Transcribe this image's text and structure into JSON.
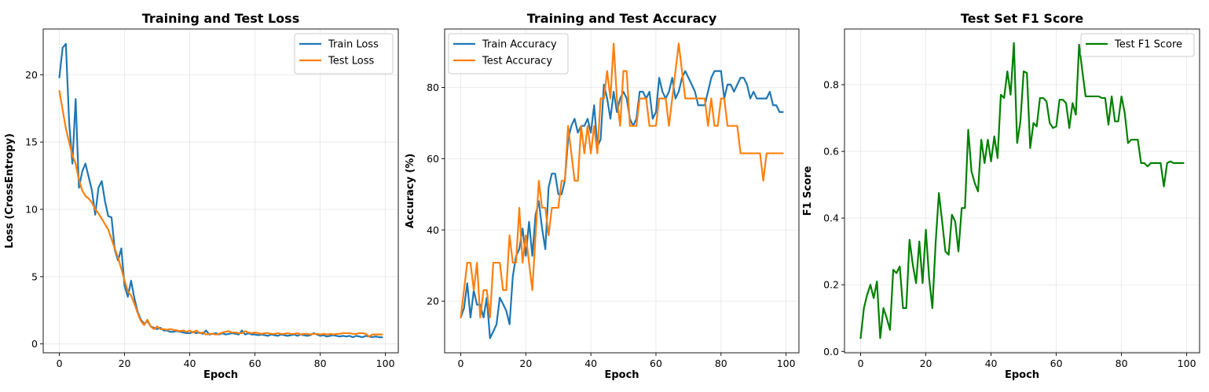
{
  "figure": {
    "chart_data": [
      {
        "type": "line",
        "title": "Training and Test Loss",
        "xlabel": "Epoch",
        "ylabel": "Loss (CrossEntropy)",
        "xlim": [
          -4.95,
          103.95
        ],
        "ylim": [
          -0.66,
          23.4
        ],
        "xticks": [
          0,
          20,
          40,
          60,
          80,
          100
        ],
        "yticks": [
          0,
          5,
          10,
          15,
          20
        ],
        "grid": true,
        "legend_position": "upper right",
        "series": [
          {
            "name": "Train Loss",
            "color": "#1f77b4",
            "values": [
              19.8,
              22.0,
              22.3,
              16.5,
              13.4,
              18.2,
              11.6,
              12.8,
              13.4,
              12.4,
              11.4,
              9.6,
              11.6,
              12.1,
              10.6,
              9.5,
              9.4,
              7.0,
              6.2,
              7.1,
              4.3,
              3.5,
              4.7,
              3.4,
              2.4,
              1.8,
              1.5,
              1.7,
              1.3,
              1.2,
              1.1,
              1.2,
              1.0,
              1.0,
              0.9,
              0.9,
              0.95,
              0.9,
              0.85,
              0.8,
              0.8,
              0.9,
              0.8,
              0.85,
              0.75,
              1.0,
              0.7,
              0.75,
              0.8,
              0.7,
              0.8,
              0.7,
              0.75,
              0.8,
              0.75,
              0.7,
              1.0,
              0.7,
              0.8,
              0.7,
              0.7,
              0.65,
              0.7,
              0.65,
              0.6,
              0.7,
              0.65,
              0.6,
              0.7,
              0.65,
              0.6,
              0.65,
              0.7,
              0.6,
              0.7,
              0.65,
              0.6,
              0.65,
              0.8,
              0.7,
              0.6,
              0.65,
              0.55,
              0.6,
              0.65,
              0.6,
              0.55,
              0.6,
              0.55,
              0.6,
              0.5,
              0.6,
              0.55,
              0.5,
              0.6,
              0.55,
              0.5,
              0.55,
              0.5,
              0.5
            ]
          },
          {
            "name": "Test Loss",
            "color": "#ff7f0e",
            "values": [
              18.8,
              17.4,
              16.0,
              15.0,
              14.0,
              13.4,
              12.2,
              11.4,
              11.0,
              10.8,
              10.5,
              10.0,
              9.7,
              9.3,
              8.9,
              8.5,
              7.8,
              7.1,
              6.4,
              5.6,
              4.7,
              3.9,
              3.6,
              3.0,
              2.3,
              1.7,
              1.4,
              1.8,
              1.3,
              1.1,
              1.3,
              1.1,
              1.1,
              1.05,
              1.1,
              1.05,
              1.0,
              0.95,
              1.0,
              0.9,
              1.0,
              0.85,
              1.0,
              0.8,
              0.85,
              0.7,
              0.75,
              0.75,
              0.7,
              0.75,
              0.85,
              0.9,
              0.95,
              0.85,
              0.85,
              0.8,
              0.8,
              0.95,
              0.85,
              0.8,
              0.85,
              0.8,
              0.75,
              0.8,
              0.8,
              0.75,
              0.75,
              0.8,
              0.75,
              0.75,
              0.8,
              0.75,
              0.75,
              0.8,
              0.7,
              0.75,
              0.75,
              0.7,
              0.75,
              0.75,
              0.7,
              0.75,
              0.7,
              0.75,
              0.7,
              0.75,
              0.75,
              0.8,
              0.8,
              0.8,
              0.75,
              0.75,
              0.8,
              0.8,
              0.75,
              0.55,
              0.7,
              0.7,
              0.7,
              0.7
            ]
          }
        ]
      },
      {
        "type": "line",
        "title": "Training and Test Accuracy",
        "xlabel": "Epoch",
        "ylabel": "Accuracy (%)",
        "xlim": [
          -4.95,
          103.95
        ],
        "ylim": [
          5.5,
          96.4
        ],
        "xticks": [
          0,
          20,
          40,
          60,
          80,
          100
        ],
        "yticks": [
          20,
          40,
          60,
          80
        ],
        "grid": true,
        "legend_position": "upper left",
        "series": [
          {
            "name": "Train Accuracy",
            "color": "#1f77b4",
            "values": [
              15.4,
              18.0,
              25.0,
              15.4,
              23.0,
              19.0,
              19.0,
              15.4,
              21.0,
              9.6,
              11.5,
              13.5,
              21.0,
              19.2,
              17.3,
              13.5,
              26.9,
              32.7,
              34.6,
              40.4,
              32.7,
              42.3,
              32.7,
              44.2,
              48.1,
              40.4,
              34.6,
              51.9,
              55.8,
              55.8,
              50.0,
              50.0,
              53.8,
              65.4,
              69.2,
              71.2,
              67.3,
              69.2,
              69.2,
              71.2,
              67.3,
              75.0,
              63.5,
              65.4,
              80.8,
              76.9,
              71.2,
              78.8,
              73.1,
              76.9,
              78.8,
              76.9,
              71.2,
              69.2,
              71.2,
              78.8,
              78.8,
              76.9,
              78.8,
              71.2,
              73.1,
              82.7,
              78.8,
              76.9,
              78.8,
              82.7,
              76.9,
              78.8,
              82.7,
              84.6,
              82.7,
              80.8,
              78.8,
              75.0,
              75.0,
              75.0,
              78.8,
              82.7,
              84.6,
              84.6,
              84.6,
              76.9,
              80.8,
              80.8,
              78.8,
              80.8,
              82.7,
              82.7,
              80.8,
              76.9,
              78.8,
              76.9,
              76.9,
              76.9,
              76.9,
              78.8,
              75.0,
              75.0,
              73.1,
              73.1
            ]
          },
          {
            "name": "Test Accuracy",
            "color": "#ff7f0e",
            "values": [
              15.4,
              23.1,
              30.8,
              30.8,
              23.1,
              30.8,
              15.4,
              23.1,
              23.1,
              15.4,
              30.8,
              30.8,
              30.8,
              23.1,
              23.1,
              38.5,
              30.8,
              30.8,
              46.2,
              30.8,
              38.5,
              30.8,
              23.1,
              38.5,
              53.8,
              46.2,
              46.2,
              38.5,
              46.2,
              46.2,
              46.2,
              53.8,
              53.8,
              69.2,
              61.5,
              53.8,
              53.8,
              69.2,
              61.5,
              69.2,
              61.5,
              69.2,
              61.5,
              76.9,
              76.9,
              84.6,
              76.9,
              92.3,
              76.9,
              69.2,
              84.6,
              84.6,
              69.2,
              69.2,
              69.2,
              76.9,
              76.9,
              76.9,
              69.2,
              69.2,
              69.2,
              76.9,
              76.9,
              76.9,
              69.2,
              76.9,
              84.6,
              92.3,
              84.6,
              76.9,
              76.9,
              76.9,
              76.9,
              76.9,
              76.9,
              76.9,
              69.2,
              76.9,
              69.2,
              69.2,
              76.9,
              76.9,
              69.2,
              69.2,
              69.2,
              69.2,
              61.5,
              61.5,
              61.5,
              61.5,
              61.5,
              61.5,
              61.5,
              53.8,
              61.5,
              61.5,
              61.5,
              61.5,
              61.5,
              61.5
            ]
          }
        ]
      },
      {
        "type": "line",
        "title": "Test Set F1 Score",
        "xlabel": "Epoch",
        "ylabel": "F1 Score",
        "xlim": [
          -4.95,
          103.95
        ],
        "ylim": [
          -0.004,
          0.967
        ],
        "xticks": [
          0,
          20,
          40,
          60,
          80,
          100
        ],
        "yticks": [
          0.0,
          0.2,
          0.4,
          0.6,
          0.8
        ],
        "grid": true,
        "legend_position": "upper right",
        "series": [
          {
            "name": "Test F1 Score",
            "color": "#008000",
            "values": [
              0.04,
              0.13,
              0.17,
              0.2,
              0.16,
              0.21,
              0.04,
              0.13,
              0.1,
              0.065,
              0.245,
              0.235,
              0.255,
              0.13,
              0.13,
              0.335,
              0.26,
              0.205,
              0.33,
              0.205,
              0.365,
              0.22,
              0.13,
              0.325,
              0.475,
              0.39,
              0.3,
              0.29,
              0.41,
              0.39,
              0.3,
              0.43,
              0.43,
              0.665,
              0.54,
              0.505,
              0.48,
              0.635,
              0.565,
              0.635,
              0.57,
              0.645,
              0.58,
              0.77,
              0.76,
              0.84,
              0.77,
              0.925,
              0.625,
              0.69,
              0.84,
              0.835,
              0.61,
              0.685,
              0.675,
              0.76,
              0.76,
              0.75,
              0.685,
              0.67,
              0.675,
              0.755,
              0.755,
              0.745,
              0.67,
              0.745,
              0.71,
              0.92,
              0.84,
              0.765,
              0.765,
              0.765,
              0.765,
              0.765,
              0.76,
              0.76,
              0.68,
              0.765,
              0.69,
              0.69,
              0.765,
              0.715,
              0.625,
              0.635,
              0.635,
              0.635,
              0.565,
              0.565,
              0.555,
              0.565,
              0.565,
              0.565,
              0.565,
              0.495,
              0.565,
              0.57,
              0.565,
              0.565,
              0.565,
              0.565
            ]
          }
        ]
      }
    ]
  }
}
